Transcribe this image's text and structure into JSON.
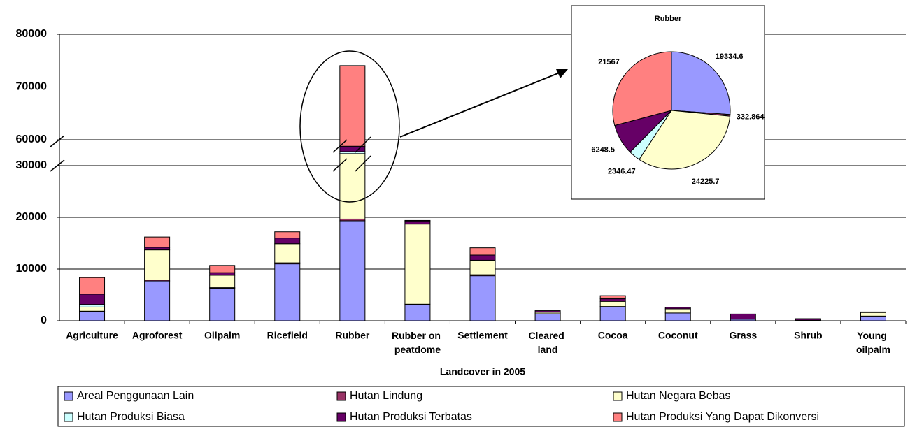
{
  "chart_data": [
    {
      "type": "bar",
      "stacked": true,
      "x_label": "Landcover in 2005",
      "categories": [
        "Agriculture",
        "Agroforest",
        "Oilpalm",
        "Ricefield",
        "Rubber",
        "Rubber on peatdome",
        "Settlement",
        "Cleared land",
        "Cocoa",
        "Coconut",
        "Grass",
        "Shrub",
        "Young oilpalm"
      ],
      "series": [
        {
          "name": "Areal Penggunaan Lain",
          "color": "#9999ff",
          "values": [
            1750,
            7700,
            6300,
            11000,
            19334.6,
            3100,
            8700,
            1300,
            2700,
            1500,
            300,
            100,
            900
          ]
        },
        {
          "name": "Hutan Lindung",
          "color": "#993366",
          "values": [
            100,
            200,
            100,
            200,
            332.864,
            100,
            200,
            50,
            50,
            0,
            0,
            0,
            0
          ]
        },
        {
          "name": "Hutan Negara Bebas",
          "color": "#ffffcc",
          "values": [
            800,
            5800,
            2400,
            3700,
            24225.7,
            15500,
            2800,
            300,
            1000,
            800,
            0,
            0,
            700
          ]
        },
        {
          "name": "Hutan Produksi Biasa",
          "color": "#ccffff",
          "values": [
            500,
            0,
            0,
            0,
            2346.47,
            0,
            0,
            0,
            0,
            0,
            0,
            0,
            0
          ]
        },
        {
          "name": "Hutan Produksi Terbatas",
          "color": "#660066",
          "values": [
            2000,
            500,
            500,
            1100,
            6248.5,
            600,
            1000,
            300,
            500,
            300,
            1000,
            300,
            100
          ]
        },
        {
          "name": "Hutan Produksi Yang Dapat Dikonversi",
          "color": "#ff8080",
          "values": [
            3200,
            2000,
            1400,
            1200,
            21567,
            100,
            1400,
            0,
            600,
            0,
            0,
            0,
            0
          ]
        }
      ],
      "ylim": [
        0,
        80000
      ],
      "axis_break": [
        30000,
        60000
      ],
      "yticks": [
        0,
        10000,
        20000,
        30000,
        60000,
        70000,
        80000
      ],
      "grid": true
    },
    {
      "type": "pie",
      "title": "Rubber",
      "categories": [
        "Areal Penggunaan Lain",
        "Hutan Lindung",
        "Hutan Negara Bebas",
        "Hutan Produksi Biasa",
        "Hutan Produksi Terbatas",
        "Hutan Produksi Yang Dapat Dikonversi"
      ],
      "values": [
        19334.6,
        332.864,
        24225.7,
        2346.47,
        6248.5,
        21567
      ],
      "colors": [
        "#9999ff",
        "#993366",
        "#ffffcc",
        "#ccffff",
        "#660066",
        "#ff8080"
      ]
    }
  ]
}
